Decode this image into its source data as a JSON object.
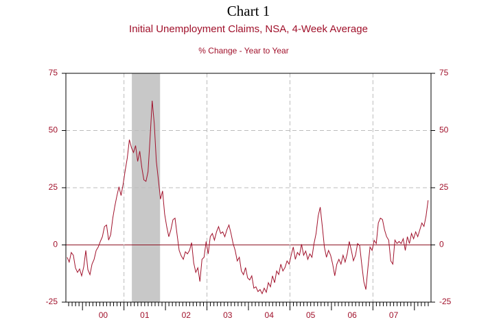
{
  "chart_data": {
    "type": "line",
    "title": "Chart 1",
    "subtitle": "Initial Unemployment Claims, NSA, 4-Week Average",
    "y_label": "% Change - Year to Year",
    "xlim": [
      1999.6,
      2008.4
    ],
    "xticks": [
      {
        "value": 2000.5,
        "label": "00"
      },
      {
        "value": 2001.5,
        "label": "01"
      },
      {
        "value": 2002.5,
        "label": "02"
      },
      {
        "value": 2003.5,
        "label": "03"
      },
      {
        "value": 2004.5,
        "label": "04"
      },
      {
        "value": 2005.5,
        "label": "05"
      },
      {
        "value": 2006.5,
        "label": "06"
      },
      {
        "value": 2007.5,
        "label": "07"
      }
    ],
    "x_gridlines": [
      2001,
      2003,
      2005,
      2007
    ],
    "x_minor_ticks_per_year": 12,
    "ylim": [
      -25,
      75
    ],
    "yticks": [
      -25,
      0,
      25,
      50,
      75
    ],
    "grid": true,
    "shaded_period": [
      2001.19,
      2001.87
    ],
    "shade_color": "#c8c8c8",
    "zero_line_color": "#8b1020",
    "x": [
      1999.63,
      1999.68,
      1999.73,
      1999.78,
      1999.83,
      1999.88,
      1999.93,
      1999.98,
      2000.03,
      2000.08,
      2000.13,
      2000.18,
      2000.23,
      2000.28,
      2000.33,
      2000.38,
      2000.43,
      2000.48,
      2000.53,
      2000.58,
      2000.63,
      2000.68,
      2000.73,
      2000.78,
      2000.83,
      2000.88,
      2000.93,
      2000.98,
      2001.03,
      2001.08,
      2001.13,
      2001.18,
      2001.23,
      2001.28,
      2001.33,
      2001.38,
      2001.43,
      2001.48,
      2001.53,
      2001.58,
      2001.63,
      2001.68,
      2001.73,
      2001.78,
      2001.83,
      2001.88,
      2001.93,
      2001.98,
      2002.03,
      2002.08,
      2002.13,
      2002.18,
      2002.23,
      2002.28,
      2002.33,
      2002.38,
      2002.43,
      2002.48,
      2002.53,
      2002.58,
      2002.63,
      2002.68,
      2002.73,
      2002.78,
      2002.83,
      2002.88,
      2002.93,
      2002.98,
      2003.03,
      2003.08,
      2003.13,
      2003.18,
      2003.23,
      2003.28,
      2003.33,
      2003.38,
      2003.43,
      2003.48,
      2003.53,
      2003.58,
      2003.63,
      2003.68,
      2003.73,
      2003.78,
      2003.83,
      2003.88,
      2003.93,
      2003.98,
      2004.03,
      2004.08,
      2004.13,
      2004.18,
      2004.23,
      2004.28,
      2004.33,
      2004.38,
      2004.43,
      2004.48,
      2004.53,
      2004.58,
      2004.63,
      2004.68,
      2004.73,
      2004.78,
      2004.83,
      2004.88,
      2004.93,
      2004.98,
      2005.03,
      2005.08,
      2005.13,
      2005.18,
      2005.23,
      2005.28,
      2005.33,
      2005.38,
      2005.43,
      2005.48,
      2005.53,
      2005.58,
      2005.63,
      2005.68,
      2005.73,
      2005.78,
      2005.83,
      2005.88,
      2005.93,
      2005.98,
      2006.03,
      2006.08,
      2006.13,
      2006.18,
      2006.23,
      2006.28,
      2006.33,
      2006.38,
      2006.43,
      2006.48,
      2006.53,
      2006.58,
      2006.63,
      2006.68,
      2006.73,
      2006.78,
      2006.83,
      2006.88,
      2006.93,
      2006.98,
      2007.03,
      2007.08,
      2007.13,
      2007.18,
      2007.23,
      2007.28,
      2007.33,
      2007.38,
      2007.43,
      2007.48,
      2007.53,
      2007.58,
      2007.63,
      2007.68,
      2007.73,
      2007.78,
      2007.83,
      2007.88,
      2007.93,
      2007.98,
      2008.03,
      2008.08,
      2008.13,
      2008.18,
      2008.23,
      2008.28,
      2008.33
    ],
    "series": [
      {
        "color": "#a0102a",
        "values": [
          -5.4,
          -7.5,
          -3.3,
          -4.5,
          -10,
          -12,
          -10.5,
          -13.5,
          -9.6,
          -2.4,
          -10.8,
          -13,
          -8.4,
          -6.3,
          -2.4,
          -0.9,
          1.5,
          3.6,
          8,
          8.7,
          2.1,
          4.5,
          11.7,
          17,
          21.5,
          25.4,
          21.6,
          26.6,
          32.6,
          38,
          46,
          42.5,
          40.4,
          43.4,
          36.5,
          41,
          33.8,
          28.4,
          27.8,
          32,
          47,
          63,
          53,
          36.5,
          28.4,
          20,
          23.6,
          13.5,
          8,
          3.6,
          6.6,
          11,
          11.7,
          4.5,
          -2.4,
          -4.8,
          -6.3,
          -3,
          -3.9,
          -2.4,
          1,
          -7.8,
          -12,
          -10,
          -16,
          -6.3,
          -5.4,
          1.5,
          -3.9,
          3.6,
          5,
          2.1,
          5.7,
          8,
          5,
          5.7,
          3.6,
          6.6,
          8.7,
          5,
          0.6,
          -2.4,
          -7,
          -5.4,
          -11.4,
          -13,
          -9.9,
          -14.4,
          -15.3,
          -13.5,
          -18.9,
          -18.3,
          -20.4,
          -19.5,
          -21.3,
          -18.9,
          -20.7,
          -16.5,
          -18.3,
          -13.5,
          -16.5,
          -11.4,
          -12.9,
          -8.4,
          -11.4,
          -9.9,
          -7,
          -8.4,
          -4.5,
          -0.9,
          -6.3,
          -3.3,
          -4.5,
          0.3,
          -4.5,
          -2.7,
          -6.3,
          -3.9,
          -5.4,
          0.6,
          5,
          12.6,
          16.5,
          8.1,
          -0.9,
          -5.4,
          -2.4,
          -4.5,
          -8.4,
          -13.5,
          -8.4,
          -6.3,
          -8.4,
          -4.5,
          -7.5,
          -3.9,
          1.5,
          -2.4,
          -6.9,
          -4.5,
          0.6,
          -0.3,
          -8.4,
          -16,
          -19.5,
          -9.9,
          -0.9,
          -2.4,
          2,
          0.6,
          9.6,
          11.7,
          11.1,
          6.6,
          3.6,
          2.1,
          -7,
          -8.4,
          2.1,
          0.6,
          1.5,
          0.6,
          2.7,
          -2.4,
          3.6,
          0.6,
          5,
          2.7,
          5.7,
          3.6,
          6.6,
          9.6,
          8.1,
          12.6,
          19.5
        ]
      }
    ]
  }
}
